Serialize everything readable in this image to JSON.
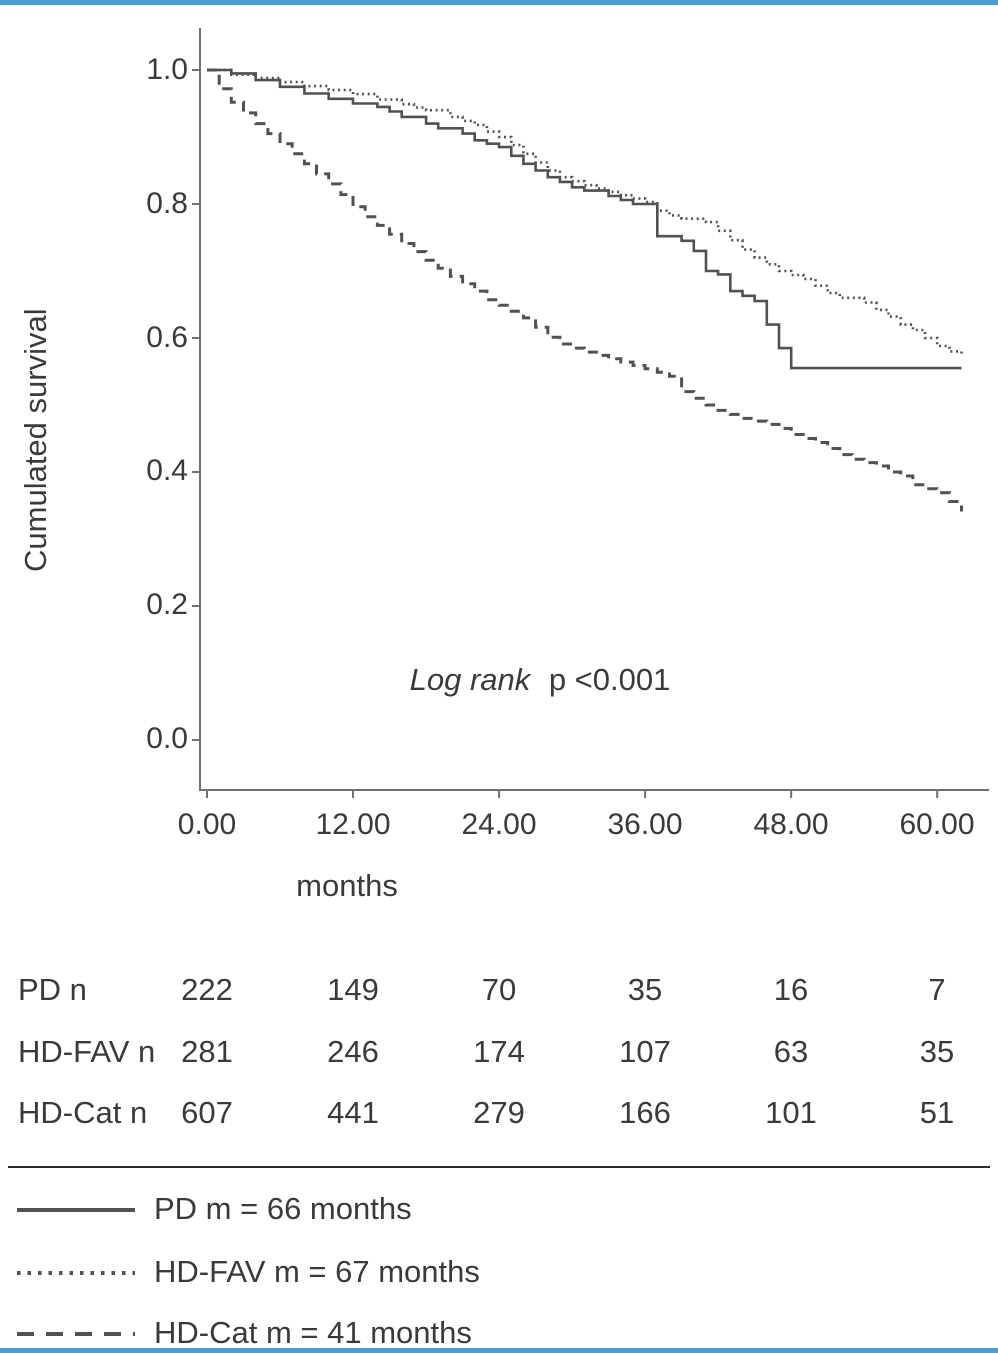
{
  "colors": {
    "accent": "#4a9fd4",
    "curve": "#515151",
    "axis": "#707070",
    "text": "#3a3a3a"
  },
  "chart_data": {
    "type": "line",
    "subtype": "kaplan_meier_step",
    "title": "",
    "xlabel": "months",
    "ylabel": "Cumulated survival",
    "xlim": [
      0,
      62
    ],
    "ylim": [
      0,
      1.05
    ],
    "grid": false,
    "legend_position": "bottom-left",
    "xticks": [
      0,
      12,
      24,
      36,
      48,
      60
    ],
    "xtick_labels": [
      "0.00",
      "12.00",
      "24.00",
      "36.00",
      "48.00",
      "60.00"
    ],
    "yticks": [
      0,
      0.2,
      0.4,
      0.6,
      0.8,
      1
    ],
    "ytick_labels": [
      "0.0",
      "0.2",
      "0.4",
      "0.6",
      "0.8",
      "1.0"
    ],
    "annotation": {
      "italic": "Log rank",
      "rest": "p <0.001"
    },
    "series": [
      {
        "name": "PD",
        "style": "solid",
        "median_months": 66,
        "points": [
          [
            0,
            1
          ],
          [
            2,
            0.995
          ],
          [
            4,
            0.985
          ],
          [
            6,
            0.975
          ],
          [
            8,
            0.965
          ],
          [
            10,
            0.957
          ],
          [
            12,
            0.95
          ],
          [
            14,
            0.945
          ],
          [
            15,
            0.938
          ],
          [
            16,
            0.93
          ],
          [
            18,
            0.92
          ],
          [
            19,
            0.913
          ],
          [
            21,
            0.905
          ],
          [
            22,
            0.895
          ],
          [
            23,
            0.89
          ],
          [
            24,
            0.885
          ],
          [
            25,
            0.872
          ],
          [
            26,
            0.86
          ],
          [
            27,
            0.85
          ],
          [
            28,
            0.84
          ],
          [
            29,
            0.833
          ],
          [
            30,
            0.825
          ],
          [
            31,
            0.82
          ],
          [
            33,
            0.812
          ],
          [
            34,
            0.806
          ],
          [
            35,
            0.8
          ],
          [
            37,
            0.752
          ],
          [
            39,
            0.745
          ],
          [
            40,
            0.73
          ],
          [
            41,
            0.7
          ],
          [
            42,
            0.695
          ],
          [
            43,
            0.67
          ],
          [
            44,
            0.663
          ],
          [
            45,
            0.655
          ],
          [
            46,
            0.62
          ],
          [
            47,
            0.585
          ],
          [
            48,
            0.555
          ],
          [
            62,
            0.555
          ]
        ]
      },
      {
        "name": "HD-FAV",
        "style": "dotted",
        "median_months": 67,
        "points": [
          [
            0,
            1
          ],
          [
            2,
            0.993
          ],
          [
            4,
            0.988
          ],
          [
            6,
            0.982
          ],
          [
            8,
            0.976
          ],
          [
            10,
            0.97
          ],
          [
            12,
            0.964
          ],
          [
            14,
            0.956
          ],
          [
            16,
            0.949
          ],
          [
            17,
            0.944
          ],
          [
            18,
            0.94
          ],
          [
            20,
            0.93
          ],
          [
            21,
            0.924
          ],
          [
            22,
            0.918
          ],
          [
            23,
            0.908
          ],
          [
            24,
            0.9
          ],
          [
            25,
            0.888
          ],
          [
            26,
            0.875
          ],
          [
            27,
            0.862
          ],
          [
            28,
            0.85
          ],
          [
            29,
            0.84
          ],
          [
            30,
            0.834
          ],
          [
            31,
            0.828
          ],
          [
            32,
            0.823
          ],
          [
            33,
            0.818
          ],
          [
            34,
            0.813
          ],
          [
            35,
            0.808
          ],
          [
            36,
            0.803
          ],
          [
            37,
            0.79
          ],
          [
            38,
            0.783
          ],
          [
            39,
            0.778
          ],
          [
            41,
            0.773
          ],
          [
            42,
            0.76
          ],
          [
            43,
            0.746
          ],
          [
            44,
            0.732
          ],
          [
            45,
            0.72
          ],
          [
            46,
            0.71
          ],
          [
            47,
            0.7
          ],
          [
            48,
            0.694
          ],
          [
            49,
            0.688
          ],
          [
            50,
            0.678
          ],
          [
            51,
            0.667
          ],
          [
            52,
            0.66
          ],
          [
            54,
            0.653
          ],
          [
            55,
            0.642
          ],
          [
            56,
            0.632
          ],
          [
            57,
            0.62
          ],
          [
            58,
            0.612
          ],
          [
            59,
            0.6
          ],
          [
            60,
            0.588
          ],
          [
            61,
            0.58
          ],
          [
            62,
            0.575
          ]
        ]
      },
      {
        "name": "HD-Cat",
        "style": "dashed",
        "median_months": 41,
        "points": [
          [
            0,
            1
          ],
          [
            1,
            0.972
          ],
          [
            2,
            0.952
          ],
          [
            3,
            0.936
          ],
          [
            4,
            0.92
          ],
          [
            5,
            0.905
          ],
          [
            6,
            0.89
          ],
          [
            7,
            0.875
          ],
          [
            8,
            0.86
          ],
          [
            9,
            0.845
          ],
          [
            10,
            0.83
          ],
          [
            11,
            0.814
          ],
          [
            12,
            0.796
          ],
          [
            13,
            0.781
          ],
          [
            14,
            0.768
          ],
          [
            15,
            0.755
          ],
          [
            16,
            0.741
          ],
          [
            17,
            0.729
          ],
          [
            18,
            0.716
          ],
          [
            19,
            0.704
          ],
          [
            20,
            0.692
          ],
          [
            21,
            0.681
          ],
          [
            22,
            0.67
          ],
          [
            23,
            0.657
          ],
          [
            24,
            0.649
          ],
          [
            25,
            0.64
          ],
          [
            26,
            0.63
          ],
          [
            27,
            0.616
          ],
          [
            28,
            0.601
          ],
          [
            29,
            0.591
          ],
          [
            30,
            0.585
          ],
          [
            31,
            0.579
          ],
          [
            32,
            0.574
          ],
          [
            33,
            0.569
          ],
          [
            34,
            0.564
          ],
          [
            35,
            0.559
          ],
          [
            36,
            0.554
          ],
          [
            37,
            0.549
          ],
          [
            38,
            0.543
          ],
          [
            39,
            0.52
          ],
          [
            40,
            0.51
          ],
          [
            41,
            0.5
          ],
          [
            42,
            0.492
          ],
          [
            43,
            0.486
          ],
          [
            44,
            0.48
          ],
          [
            45,
            0.476
          ],
          [
            46,
            0.471
          ],
          [
            47,
            0.465
          ],
          [
            48,
            0.456
          ],
          [
            49,
            0.45
          ],
          [
            50,
            0.444
          ],
          [
            51,
            0.435
          ],
          [
            52,
            0.426
          ],
          [
            53,
            0.419
          ],
          [
            54,
            0.414
          ],
          [
            55,
            0.409
          ],
          [
            56,
            0.4
          ],
          [
            57,
            0.394
          ],
          [
            58,
            0.381
          ],
          [
            59,
            0.375
          ],
          [
            60,
            0.369
          ],
          [
            61,
            0.356
          ],
          [
            62,
            0.341
          ]
        ]
      }
    ]
  },
  "risk_table": {
    "rows": [
      {
        "label": "PD n",
        "values": [
          "222",
          "149",
          "70",
          "35",
          "16",
          "7"
        ]
      },
      {
        "label": "HD-FAV n",
        "values": [
          "281",
          "246",
          "174",
          "107",
          "63",
          "35"
        ]
      },
      {
        "label": "HD-Cat n",
        "values": [
          "607",
          "441",
          "279",
          "166",
          "101",
          "51"
        ]
      }
    ]
  },
  "legend": {
    "items": [
      {
        "name": "PD",
        "style": "solid",
        "label": "PD m = 66 months"
      },
      {
        "name": "HD-FAV",
        "style": "dotted",
        "label": "HD-FAV m = 67 months"
      },
      {
        "name": "HD-Cat",
        "style": "dashed",
        "label": "HD-Cat m = 41 months"
      }
    ]
  }
}
